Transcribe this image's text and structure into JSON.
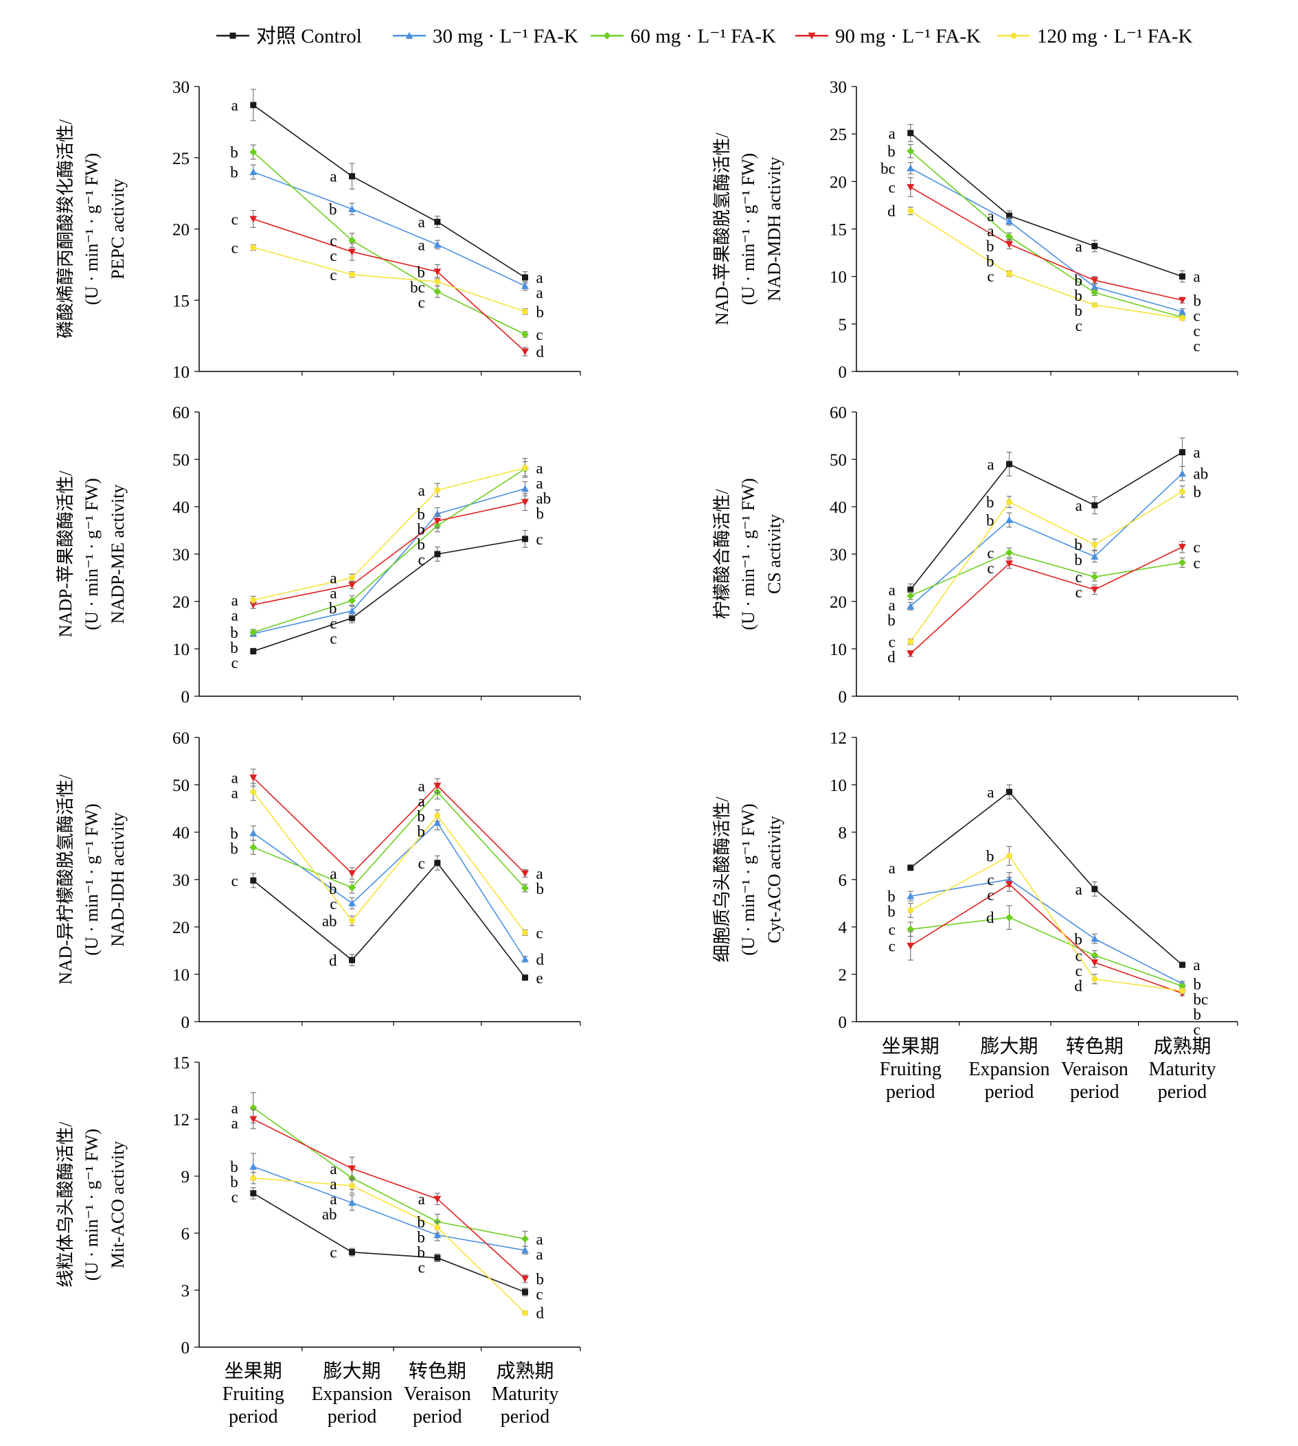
{
  "legend": [
    {
      "name": "对照 Control",
      "color": "#1a1a1a",
      "marker": "square"
    },
    {
      "name": "30 mg · L⁻¹ FA-K",
      "color": "#4a90e2",
      "marker": "triangle-up"
    },
    {
      "name": "60 mg · L⁻¹ FA-K",
      "color": "#6bcf1f",
      "marker": "diamond"
    },
    {
      "name": "90 mg · L⁻¹ FA-K",
      "color": "#e02020",
      "marker": "triangle-down"
    },
    {
      "name": "120 mg · L⁻¹ FA-K",
      "color": "#f7e33a",
      "marker": "circle"
    }
  ],
  "x_labels": [
    {
      "zh": "坐果期",
      "en1": "Fruiting",
      "en2": "period"
    },
    {
      "zh": "膨大期",
      "en1": "Expansion",
      "en2": "period"
    },
    {
      "zh": "转色期",
      "en1": "Veraison",
      "en2": "period"
    },
    {
      "zh": "成熟期",
      "en1": "Maturity",
      "en2": "period"
    }
  ],
  "chart_data": [
    {
      "type": "line",
      "ylabel": [
        "磷酸烯醇丙酮酸羧化酶活性/",
        "(U · min⁻¹ · g⁻¹ FW)",
        "PEPC activity"
      ],
      "ylim": [
        10,
        30
      ],
      "yticks": [
        10,
        15,
        20,
        25,
        30
      ],
      "categories": [
        "Fruiting period",
        "Expansion period",
        "Veraison period",
        "Maturity period"
      ],
      "series": [
        {
          "name": "对照 Control",
          "values": [
            28.7,
            23.7,
            20.5,
            16.6
          ],
          "err": [
            1.1,
            0.9,
            0.4,
            0.4
          ],
          "labels": [
            "a",
            "a",
            "a",
            "a"
          ]
        },
        {
          "name": "30 mg · L⁻¹ FA-K",
          "values": [
            24.0,
            21.4,
            18.9,
            16.0
          ],
          "err": [
            0.5,
            0.4,
            0.3,
            0.3
          ],
          "labels": [
            "b",
            "b",
            "a",
            "a"
          ]
        },
        {
          "name": "60 mg · L⁻¹ FA-K",
          "values": [
            25.4,
            19.2,
            15.6,
            12.6
          ],
          "err": [
            0.5,
            0.5,
            0.4,
            0.2
          ],
          "labels": [
            "b",
            "c",
            "c",
            "c"
          ]
        },
        {
          "name": "90 mg · L⁻¹ FA-K",
          "values": [
            20.7,
            18.4,
            17.0,
            11.4
          ],
          "err": [
            0.6,
            0.6,
            0.5,
            0.3
          ],
          "labels": [
            "c",
            "c",
            "b",
            "d"
          ]
        },
        {
          "name": "120 mg · L⁻¹ FA-K",
          "values": [
            18.7,
            16.8,
            16.3,
            14.2
          ],
          "err": [
            0.2,
            0.2,
            0.3,
            0.2
          ],
          "labels": [
            "c",
            "c",
            "bc",
            "b"
          ]
        }
      ]
    },
    {
      "type": "line",
      "ylabel": [
        "NAD-苹果酸脱氢酶活性/",
        "(U · min⁻¹ · g⁻¹ FW)",
        "NAD-MDH activity"
      ],
      "ylim": [
        0,
        30
      ],
      "yticks": [
        0,
        5,
        10,
        15,
        20,
        25,
        30
      ],
      "categories": [
        "Fruiting period",
        "Expansion period",
        "Veraison period",
        "Maturity period"
      ],
      "series": [
        {
          "name": "对照 Control",
          "values": [
            25.1,
            16.4,
            13.2,
            10.0
          ],
          "err": [
            0.9,
            0.5,
            0.6,
            0.6
          ],
          "labels": [
            "a",
            "a",
            "a",
            "a"
          ]
        },
        {
          "name": "30 mg · L⁻¹ FA-K",
          "values": [
            21.4,
            15.8,
            8.9,
            6.3
          ],
          "err": [
            0.6,
            0.4,
            0.4,
            0.3
          ],
          "labels": [
            "bc",
            "a",
            "b",
            "c"
          ]
        },
        {
          "name": "60 mg · L⁻¹ FA-K",
          "values": [
            23.2,
            14.2,
            8.3,
            5.7
          ],
          "err": [
            0.7,
            0.4,
            0.3,
            0.2
          ],
          "labels": [
            "b",
            "b",
            "b",
            "c"
          ]
        },
        {
          "name": "90 mg · L⁻¹ FA-K",
          "values": [
            19.4,
            13.4,
            9.6,
            7.5
          ],
          "err": [
            1.0,
            0.5,
            0.4,
            0.3
          ],
          "labels": [
            "c",
            "b",
            "b",
            "b"
          ]
        },
        {
          "name": "120 mg · L⁻¹ FA-K",
          "values": [
            16.9,
            10.3,
            7.0,
            5.6
          ],
          "err": [
            0.4,
            0.3,
            0.2,
            0.2
          ],
          "labels": [
            "d",
            "c",
            "c",
            "c"
          ]
        }
      ]
    },
    {
      "type": "line",
      "ylabel": [
        "NADP-苹果酸酶活性/",
        "(U · min⁻¹ · g⁻¹ FW)",
        "NADP-ME activity"
      ],
      "ylim": [
        0,
        60
      ],
      "yticks": [
        0,
        10,
        20,
        30,
        40,
        50,
        60
      ],
      "categories": [
        "Fruiting period",
        "Expansion period",
        "Veraison period",
        "Maturity period"
      ],
      "series": [
        {
          "name": "对照 Control",
          "values": [
            9.5,
            16.5,
            30.0,
            33.2
          ],
          "err": [
            0.6,
            1.0,
            1.5,
            1.8
          ],
          "labels": [
            "c",
            "c",
            "c",
            "c"
          ]
        },
        {
          "name": "30 mg · L⁻¹ FA-K",
          "values": [
            13.2,
            18.0,
            38.5,
            43.8
          ],
          "err": [
            0.6,
            1.0,
            1.3,
            1.5
          ],
          "labels": [
            "b",
            "c",
            "b",
            "ab"
          ]
        },
        {
          "name": "60 mg · L⁻¹ FA-K",
          "values": [
            13.5,
            20.2,
            36.0,
            48.0
          ],
          "err": [
            0.6,
            1.0,
            1.3,
            1.5
          ],
          "labels": [
            "b",
            "b",
            "b",
            "a"
          ]
        },
        {
          "name": "90 mg · L⁻¹ FA-K",
          "values": [
            19.3,
            23.5,
            37.0,
            41.0
          ],
          "err": [
            0.8,
            0.8,
            1.5,
            1.8
          ],
          "labels": [
            "a",
            "a",
            "b",
            "b"
          ]
        },
        {
          "name": "120 mg · L⁻¹ FA-K",
          "values": [
            20.3,
            25.0,
            43.5,
            48.2
          ],
          "err": [
            0.8,
            0.8,
            1.4,
            2.0
          ],
          "labels": [
            "a",
            "a",
            "a",
            "a"
          ]
        }
      ]
    },
    {
      "type": "line",
      "ylabel": [
        "柠檬酸合酶活性/",
        "(U · min⁻¹ · g⁻¹ FW)",
        "CS activity"
      ],
      "ylim": [
        0,
        60
      ],
      "yticks": [
        0,
        10,
        20,
        30,
        40,
        50,
        60
      ],
      "categories": [
        "Fruiting period",
        "Expansion period",
        "Veraison period",
        "Maturity period"
      ],
      "series": [
        {
          "name": "对照 Control",
          "values": [
            22.5,
            49.0,
            40.3,
            51.5
          ],
          "err": [
            1.2,
            2.5,
            1.8,
            3.0
          ],
          "labels": [
            "a",
            "a",
            "a",
            "a"
          ]
        },
        {
          "name": "30 mg · L⁻¹ FA-K",
          "values": [
            19.0,
            37.2,
            29.5,
            47.0
          ],
          "err": [
            0.8,
            1.5,
            1.2,
            1.5
          ],
          "labels": [
            "b",
            "b",
            "b",
            "ab"
          ]
        },
        {
          "name": "60 mg · L⁻¹ FA-K",
          "values": [
            21.2,
            30.3,
            25.2,
            28.2
          ],
          "err": [
            0.8,
            1.0,
            0.9,
            1.0
          ],
          "labels": [
            "a",
            "c",
            "c",
            "c"
          ]
        },
        {
          "name": "90 mg · L⁻¹ FA-K",
          "values": [
            9.0,
            28.0,
            22.5,
            31.5
          ],
          "err": [
            0.6,
            1.0,
            1.0,
            1.2
          ],
          "labels": [
            "d",
            "c",
            "c",
            "c"
          ]
        },
        {
          "name": "120 mg · L⁻¹ FA-K",
          "values": [
            11.5,
            41.0,
            32.0,
            43.2
          ],
          "err": [
            0.6,
            1.2,
            1.2,
            1.2
          ],
          "labels": [
            "c",
            "b",
            "b",
            "b"
          ]
        }
      ]
    },
    {
      "type": "line",
      "ylabel": [
        "NAD-异柠檬酸脱氢酶活性/",
        "(U · min⁻¹ · g⁻¹ FW)",
        "NAD-IDH activity"
      ],
      "ylim": [
        0,
        60
      ],
      "yticks": [
        0,
        10,
        20,
        30,
        40,
        50,
        60
      ],
      "categories": [
        "Fruiting period",
        "Expansion period",
        "Veraison period",
        "Maturity period"
      ],
      "series": [
        {
          "name": "对照 Control",
          "values": [
            29.8,
            13.0,
            33.5,
            9.3
          ],
          "err": [
            1.5,
            1.2,
            1.5,
            0.5
          ],
          "labels": [
            "c",
            "d",
            "c",
            "e"
          ]
        },
        {
          "name": "30 mg · L⁻¹ FA-K",
          "values": [
            39.8,
            25.0,
            42.0,
            13.2
          ],
          "err": [
            1.5,
            1.2,
            1.5,
            0.6
          ],
          "labels": [
            "b",
            "c",
            "b",
            "d"
          ]
        },
        {
          "name": "60 mg · L⁻¹ FA-K",
          "values": [
            36.8,
            28.3,
            48.5,
            28.2
          ],
          "err": [
            1.5,
            1.2,
            1.5,
            0.8
          ],
          "labels": [
            "b",
            "b",
            "a",
            "b"
          ]
        },
        {
          "name": "90 mg · L⁻¹ FA-K",
          "values": [
            51.5,
            31.3,
            49.8,
            31.3
          ],
          "err": [
            1.8,
            1.2,
            1.5,
            0.8
          ],
          "labels": [
            "a",
            "a",
            "a",
            "a"
          ]
        },
        {
          "name": "120 mg · L⁻¹ FA-K",
          "values": [
            48.5,
            21.3,
            43.5,
            18.8
          ],
          "err": [
            1.8,
            1.0,
            1.2,
            0.6
          ],
          "labels": [
            "a",
            "ab",
            "b",
            "c"
          ]
        }
      ]
    },
    {
      "type": "line",
      "ylabel": [
        "细胞质乌头酸酶活性/",
        "(U · min⁻¹ · g⁻¹ FW)",
        "Cyt-ACO activity"
      ],
      "ylim": [
        0,
        12
      ],
      "yticks": [
        0,
        2,
        4,
        6,
        8,
        10,
        12
      ],
      "categories": [
        "Fruiting period",
        "Expansion period",
        "Veraison period",
        "Maturity period"
      ],
      "series": [
        {
          "name": "对照 Control",
          "values": [
            6.5,
            9.7,
            5.6,
            2.4
          ],
          "err": [
            0.1,
            0.3,
            0.3,
            0.1
          ],
          "labels": [
            "a",
            "a",
            "a",
            "a"
          ]
        },
        {
          "name": "30 mg · L⁻¹ FA-K",
          "values": [
            5.3,
            6.0,
            3.5,
            1.6
          ],
          "err": [
            0.2,
            0.3,
            0.2,
            0.1
          ],
          "labels": [
            "b",
            "c",
            "b",
            "b"
          ]
        },
        {
          "name": "60 mg · L⁻¹ FA-K",
          "values": [
            3.9,
            4.4,
            2.8,
            1.5
          ],
          "err": [
            0.3,
            0.5,
            0.2,
            0.1
          ],
          "labels": [
            "c",
            "d",
            "c",
            "bc"
          ]
        },
        {
          "name": "90 mg · L⁻¹ FA-K",
          "values": [
            3.2,
            5.8,
            2.5,
            1.2
          ],
          "err": [
            0.6,
            0.3,
            0.2,
            0.1
          ],
          "labels": [
            "c",
            "c",
            "c",
            "c"
          ]
        },
        {
          "name": "120 mg · L⁻¹ FA-K",
          "values": [
            4.7,
            7.0,
            1.8,
            1.3
          ],
          "err": [
            0.3,
            0.4,
            0.2,
            0.1
          ],
          "labels": [
            "b",
            "b",
            "d",
            "b"
          ]
        }
      ]
    },
    {
      "type": "line",
      "ylabel": [
        "线粒体乌头酸酶活性/",
        "(U · min⁻¹ · g⁻¹ FW)",
        "Mit-ACO activity"
      ],
      "ylim": [
        0,
        15
      ],
      "yticks": [
        0,
        3,
        6,
        9,
        12,
        15
      ],
      "categories": [
        "Fruiting period",
        "Expansion period",
        "Veraison period",
        "Maturity period"
      ],
      "series": [
        {
          "name": "对照 Control",
          "values": [
            8.1,
            5.0,
            4.7,
            2.9
          ],
          "err": [
            0.3,
            0.2,
            0.2,
            0.2
          ],
          "labels": [
            "c",
            "c",
            "c",
            "c"
          ]
        },
        {
          "name": "30 mg · L⁻¹ FA-K",
          "values": [
            9.5,
            7.6,
            5.9,
            5.1
          ],
          "err": [
            0.7,
            0.4,
            0.3,
            0.2
          ],
          "labels": [
            "b",
            "ab",
            "b",
            "a"
          ]
        },
        {
          "name": "60 mg · L⁻¹ FA-K",
          "values": [
            12.6,
            8.9,
            6.6,
            5.7
          ],
          "err": [
            0.8,
            0.6,
            0.4,
            0.4
          ],
          "labels": [
            "a",
            "a",
            "b",
            "a"
          ]
        },
        {
          "name": "90 mg · L⁻¹ FA-K",
          "values": [
            12.0,
            9.4,
            7.8,
            3.6
          ],
          "err": [
            0.5,
            0.6,
            0.3,
            0.2
          ],
          "labels": [
            "a",
            "a",
            "a",
            "b"
          ]
        },
        {
          "name": "120 mg · L⁻¹ FA-K",
          "values": [
            8.9,
            8.5,
            6.3,
            1.8
          ],
          "err": [
            0.3,
            0.4,
            0.3,
            0.1
          ],
          "labels": [
            "b",
            "a",
            "b",
            "d"
          ]
        }
      ]
    }
  ]
}
